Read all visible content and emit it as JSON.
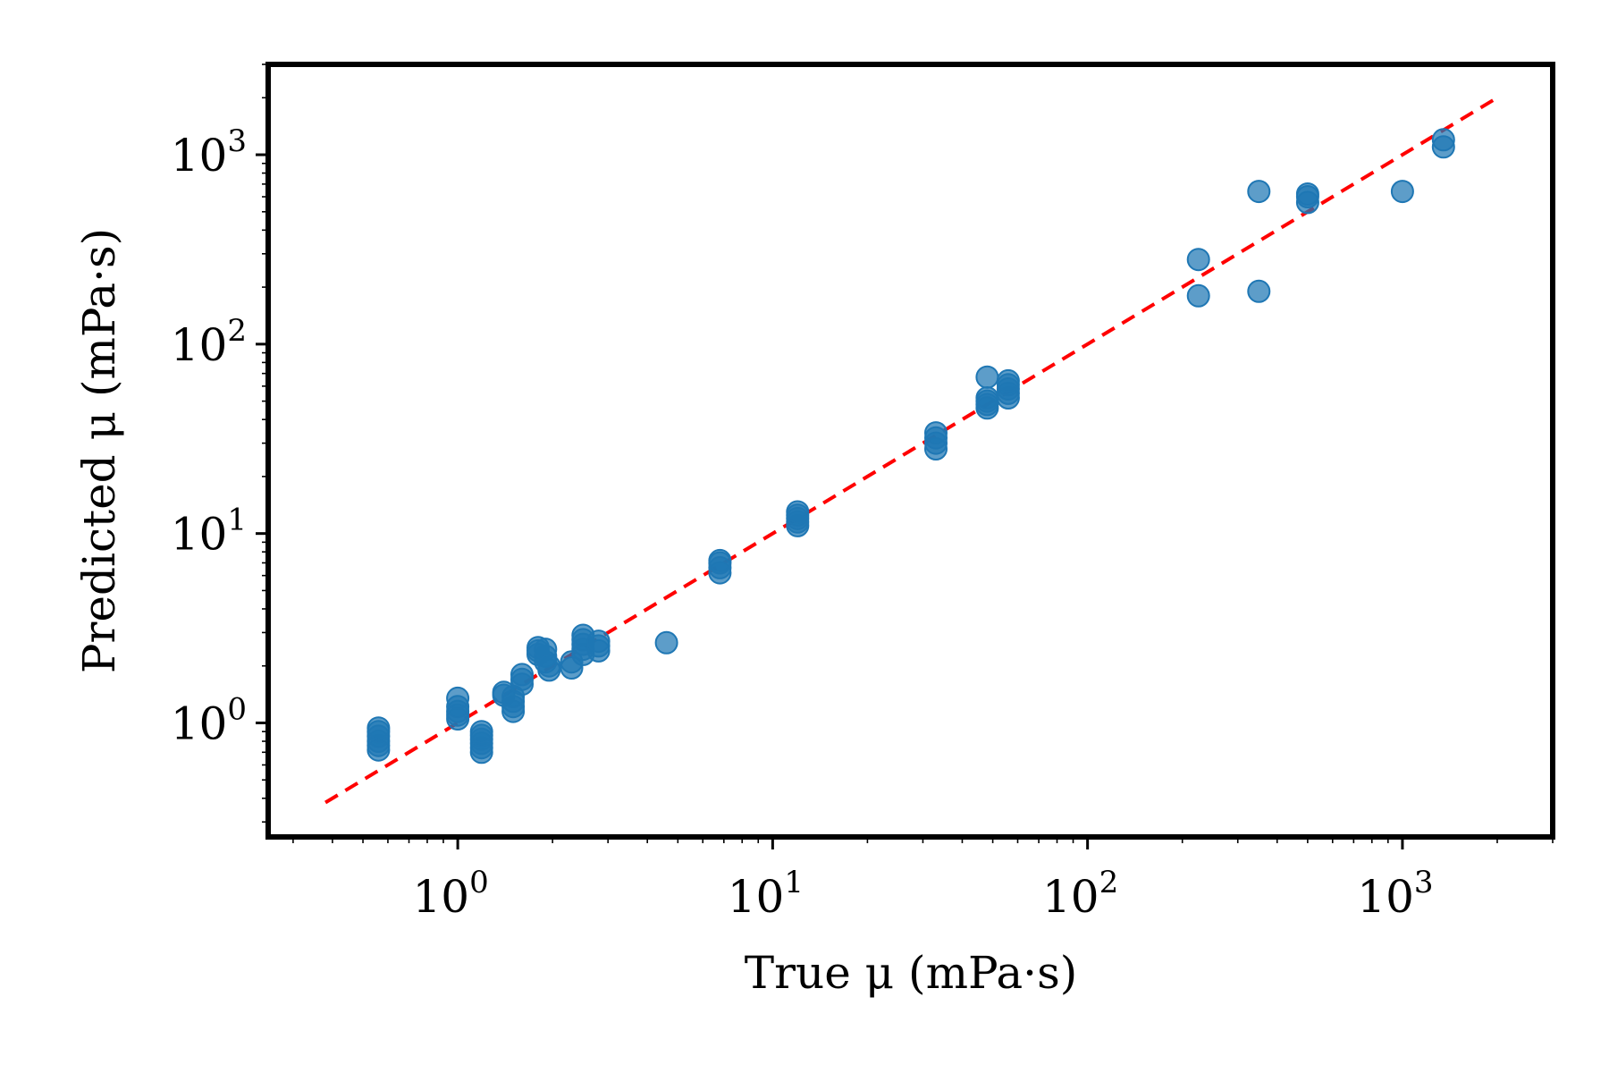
{
  "chart_data": {
    "type": "scatter",
    "title": "",
    "xlabel": "True μ (mPa·s)",
    "ylabel": "Predicted μ (mPa·s)",
    "xscale": "log",
    "yscale": "log",
    "xlim": [
      0.25,
      3000
    ],
    "ylim": [
      0.25,
      3000
    ],
    "x_ticks": [
      {
        "base": "10",
        "exp": "0"
      },
      {
        "base": "10",
        "exp": "1"
      },
      {
        "base": "10",
        "exp": "2"
      },
      {
        "base": "10",
        "exp": "3"
      }
    ],
    "y_ticks": [
      {
        "base": "10",
        "exp": "0"
      },
      {
        "base": "10",
        "exp": "1"
      },
      {
        "base": "10",
        "exp": "2"
      },
      {
        "base": "10",
        "exp": "3"
      }
    ],
    "grid": false,
    "legend": "none",
    "marker_color": "#1f77b4",
    "reference_line": {
      "style": "dashed",
      "color": "#ff0000",
      "x": [
        0.38,
        2000
      ],
      "y": [
        0.38,
        2000
      ]
    },
    "points": [
      {
        "x": 0.56,
        "y": 0.72
      },
      {
        "x": 0.56,
        "y": 0.76
      },
      {
        "x": 0.56,
        "y": 0.8
      },
      {
        "x": 0.56,
        "y": 0.85
      },
      {
        "x": 0.56,
        "y": 0.9
      },
      {
        "x": 0.56,
        "y": 0.94
      },
      {
        "x": 1.0,
        "y": 1.05
      },
      {
        "x": 1.0,
        "y": 1.1
      },
      {
        "x": 1.0,
        "y": 1.15
      },
      {
        "x": 1.0,
        "y": 1.22
      },
      {
        "x": 1.0,
        "y": 1.35
      },
      {
        "x": 1.19,
        "y": 0.7
      },
      {
        "x": 1.19,
        "y": 0.74
      },
      {
        "x": 1.19,
        "y": 0.78
      },
      {
        "x": 1.19,
        "y": 0.82
      },
      {
        "x": 1.19,
        "y": 0.86
      },
      {
        "x": 1.19,
        "y": 0.9
      },
      {
        "x": 1.4,
        "y": 1.4
      },
      {
        "x": 1.4,
        "y": 1.45
      },
      {
        "x": 1.5,
        "y": 1.15
      },
      {
        "x": 1.5,
        "y": 1.22
      },
      {
        "x": 1.5,
        "y": 1.3
      },
      {
        "x": 1.5,
        "y": 1.38
      },
      {
        "x": 1.6,
        "y": 1.6
      },
      {
        "x": 1.6,
        "y": 1.7
      },
      {
        "x": 1.6,
        "y": 1.8
      },
      {
        "x": 1.8,
        "y": 2.3
      },
      {
        "x": 1.8,
        "y": 2.4
      },
      {
        "x": 1.8,
        "y": 2.5
      },
      {
        "x": 1.9,
        "y": 2.1
      },
      {
        "x": 1.9,
        "y": 2.25
      },
      {
        "x": 1.9,
        "y": 2.45
      },
      {
        "x": 1.95,
        "y": 1.9
      },
      {
        "x": 1.95,
        "y": 2.0
      },
      {
        "x": 2.3,
        "y": 1.95
      },
      {
        "x": 2.3,
        "y": 2.1
      },
      {
        "x": 2.5,
        "y": 2.3
      },
      {
        "x": 2.5,
        "y": 2.45
      },
      {
        "x": 2.5,
        "y": 2.6
      },
      {
        "x": 2.5,
        "y": 2.75
      },
      {
        "x": 2.5,
        "y": 2.9
      },
      {
        "x": 2.8,
        "y": 2.4
      },
      {
        "x": 2.8,
        "y": 2.55
      },
      {
        "x": 2.8,
        "y": 2.7
      },
      {
        "x": 4.6,
        "y": 2.65
      },
      {
        "x": 6.8,
        "y": 6.2
      },
      {
        "x": 6.8,
        "y": 6.6
      },
      {
        "x": 6.8,
        "y": 7.0
      },
      {
        "x": 6.8,
        "y": 7.2
      },
      {
        "x": 12.0,
        "y": 11.0
      },
      {
        "x": 12.0,
        "y": 11.5
      },
      {
        "x": 12.0,
        "y": 12.0
      },
      {
        "x": 12.0,
        "y": 12.5
      },
      {
        "x": 12.0,
        "y": 13.0
      },
      {
        "x": 33.0,
        "y": 28.0
      },
      {
        "x": 33.0,
        "y": 30.0
      },
      {
        "x": 33.0,
        "y": 32.0
      },
      {
        "x": 33.0,
        "y": 34.0
      },
      {
        "x": 48.0,
        "y": 46.0
      },
      {
        "x": 48.0,
        "y": 48.0
      },
      {
        "x": 48.0,
        "y": 50.0
      },
      {
        "x": 48.0,
        "y": 52.0
      },
      {
        "x": 48.0,
        "y": 67.0
      },
      {
        "x": 56.0,
        "y": 52.0
      },
      {
        "x": 56.0,
        "y": 55.0
      },
      {
        "x": 56.0,
        "y": 58.0
      },
      {
        "x": 56.0,
        "y": 61.0
      },
      {
        "x": 56.0,
        "y": 64.0
      },
      {
        "x": 225.0,
        "y": 180.0
      },
      {
        "x": 225.0,
        "y": 280.0
      },
      {
        "x": 350.0,
        "y": 190.0
      },
      {
        "x": 350.0,
        "y": 640.0
      },
      {
        "x": 500.0,
        "y": 560.0
      },
      {
        "x": 500.0,
        "y": 600.0
      },
      {
        "x": 500.0,
        "y": 620.0
      },
      {
        "x": 1000.0,
        "y": 640.0
      },
      {
        "x": 1350.0,
        "y": 1100.0
      },
      {
        "x": 1350.0,
        "y": 1200.0
      }
    ]
  }
}
